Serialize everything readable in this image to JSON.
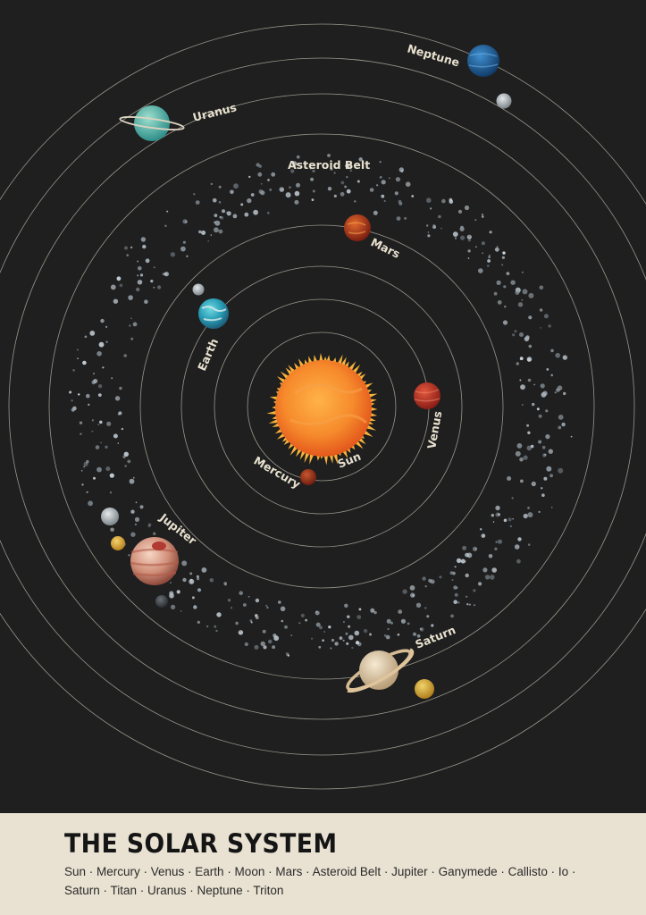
{
  "labels": {
    "neptune": "Neptune",
    "uranus": "Uranus",
    "asteroid_belt": "Asteroid Belt",
    "mars": "Mars",
    "earth": "Earth",
    "sun": "Sun",
    "venus": "Venus",
    "mercury": "Mercury",
    "jupiter": "Jupiter",
    "saturn": "Saturn"
  },
  "footer": {
    "title": "THE SOLAR SYSTEM",
    "subtitle": "Sun · Mercury · Venus · Earth · Moon · Mars · Asteroid Belt · Jupiter · Ganymede · Callisto · Io · Saturn · Titan · Uranus · Neptune · Triton"
  },
  "colors": {
    "background": "#1f1f1f",
    "orbit": "#9a968c",
    "label": "#e8e1cf",
    "footer_bg": "#e9e2d2",
    "title": "#151515"
  }
}
